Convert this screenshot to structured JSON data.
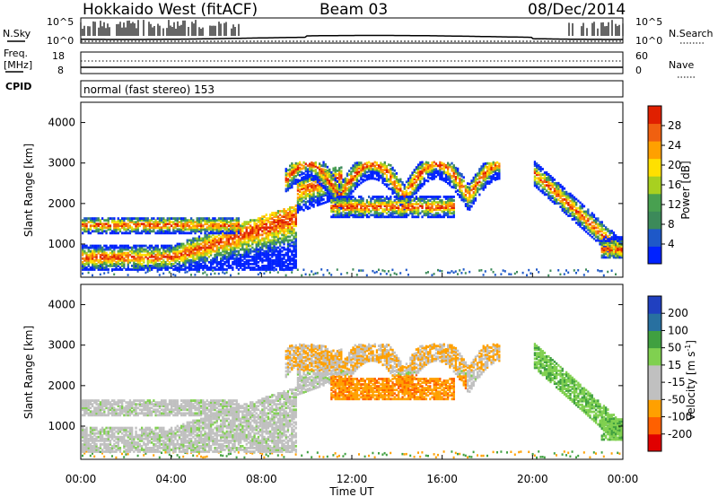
{
  "header": {
    "station": "Hokkaido West (fitACF)",
    "beam": "Beam 03",
    "date": "08/Dec/2014"
  },
  "noise_panel": {
    "left_label": "N.Sky",
    "right_label": "N.Search",
    "ticks": [
      "10^5",
      "10^0"
    ]
  },
  "freq_panel": {
    "left_label": "Freq.",
    "left_unit": "[MHz]",
    "left_ticks": [
      "18",
      "8"
    ],
    "right_label": "Nave",
    "right_ticks": [
      "60",
      "0"
    ]
  },
  "cpid": {
    "label": "CPID",
    "text": "normal (fast stereo) 153"
  },
  "colors": {
    "power": [
      "#0022ff",
      "#1e58c8",
      "#3c8a5a",
      "#48a050",
      "#a8d020",
      "#ffe000",
      "#ffa000",
      "#f06010",
      "#e02000"
    ],
    "velocity": [
      "#e00000",
      "#ff6000",
      "#ffa000",
      "#c0c0c0",
      "#c0c0c0",
      "#80d050",
      "#40a040",
      "#2870a0",
      "#2040c0"
    ]
  },
  "chart_data": [
    {
      "type": "heatmap",
      "name": "power",
      "ylabel": "Slant Range [km]",
      "yticks": [
        "4000",
        "3000",
        "2000",
        "1000"
      ],
      "ylim": [
        180,
        4500
      ],
      "xlabel": "",
      "colorbar_label": "Power [dB]",
      "colorbar_ticks": [
        "28",
        "24",
        "20",
        "16",
        "12",
        "8",
        "4"
      ],
      "colorbar_range": [
        0,
        30
      ]
    },
    {
      "type": "heatmap",
      "name": "velocity",
      "ylabel": "Slant Range [km]",
      "yticks": [
        "4000",
        "3000",
        "2000",
        "1000"
      ],
      "ylim": [
        180,
        4500
      ],
      "xlabel": "Time UT",
      "xticks": [
        "00:00",
        "04:00",
        "08:00",
        "12:00",
        "16:00",
        "20:00",
        "00:00"
      ],
      "colorbar_label": "Velocity [m s",
      "colorbar_label_sup": "-1",
      "colorbar_label_end": "]",
      "colorbar_ticks": [
        "200",
        "100",
        "50",
        "15",
        "-15",
        "-50",
        "-100",
        "-200"
      ]
    }
  ]
}
